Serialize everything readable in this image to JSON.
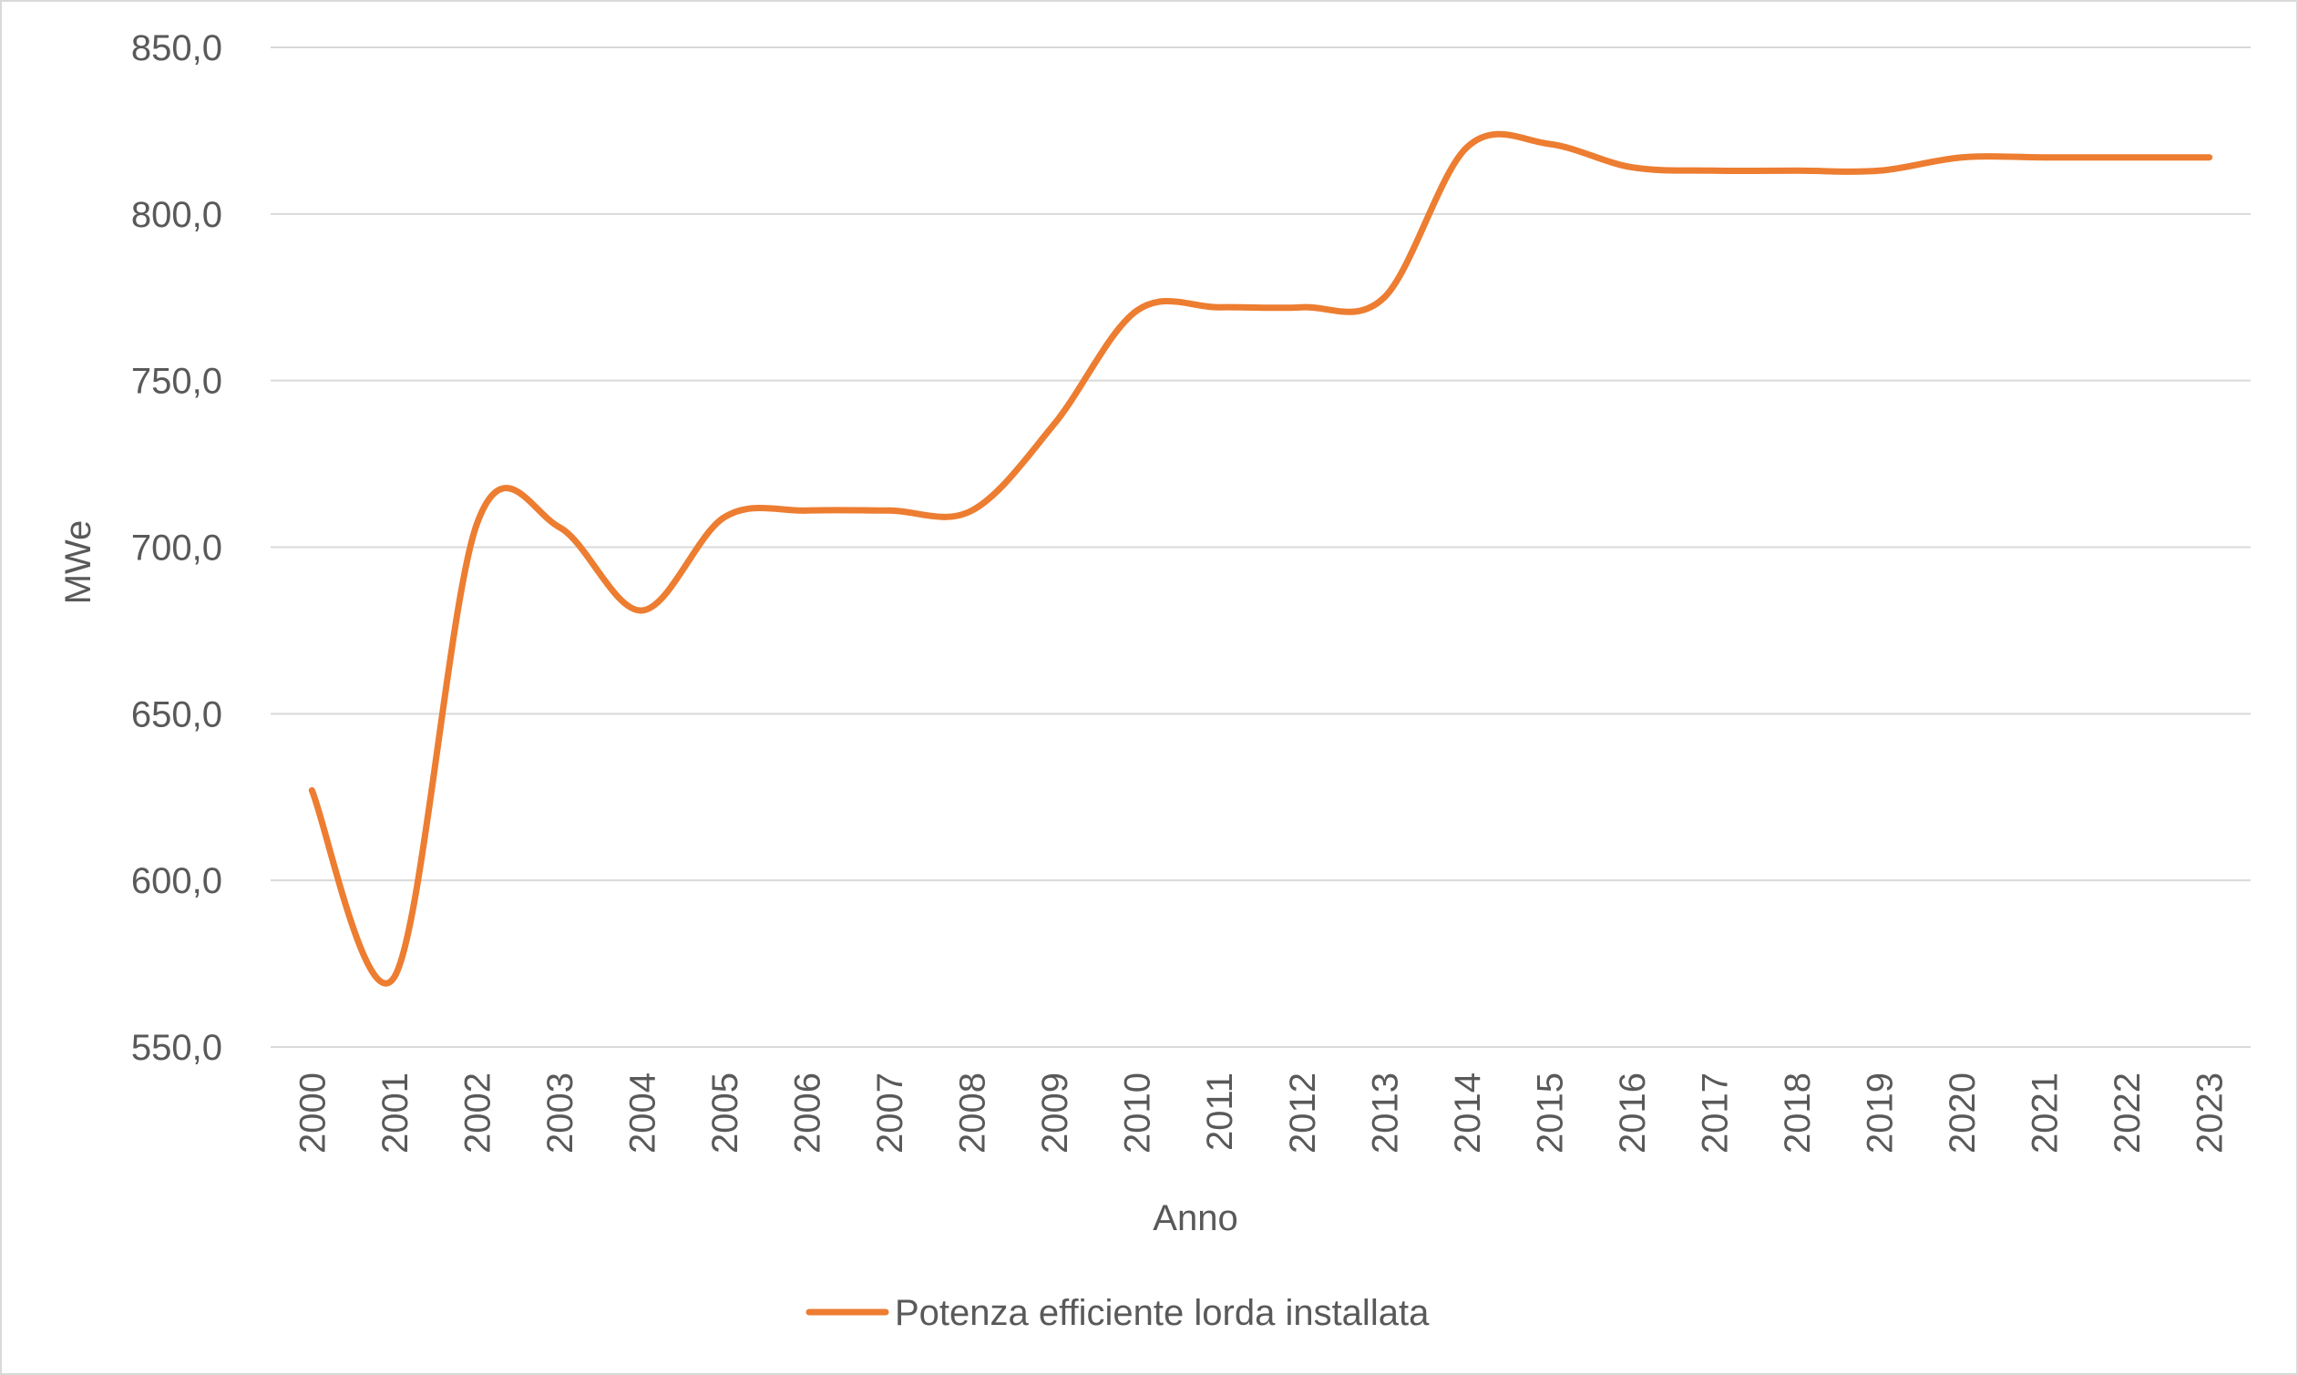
{
  "chart_data": {
    "type": "line",
    "title": "",
    "xlabel": "Anno",
    "ylabel": "MWe",
    "ylim": [
      550,
      850
    ],
    "y_ticks": [
      "550,0",
      "600,0",
      "650,0",
      "700,0",
      "750,0",
      "800,0",
      "850,0"
    ],
    "y_tick_values": [
      550,
      600,
      650,
      700,
      750,
      800,
      850
    ],
    "categories": [
      "2000",
      "2001",
      "2002",
      "2003",
      "2004",
      "2005",
      "2006",
      "2007",
      "2008",
      "2009",
      "2010",
      "2011",
      "2012",
      "2013",
      "2014",
      "2015",
      "2016",
      "2017",
      "2018",
      "2019",
      "2020",
      "2021",
      "2022",
      "2023"
    ],
    "series": [
      {
        "name": "Potenza efficiente lorda installata",
        "color": "#ed7d31",
        "values": [
          627,
          571,
          707,
          706,
          681,
          709,
          711,
          711,
          711,
          737,
          771,
          772,
          772,
          775,
          820,
          821,
          814,
          813,
          813,
          813,
          817,
          817,
          817,
          817
        ]
      }
    ],
    "grid": true,
    "smooth": true,
    "legend_position": "bottom"
  }
}
